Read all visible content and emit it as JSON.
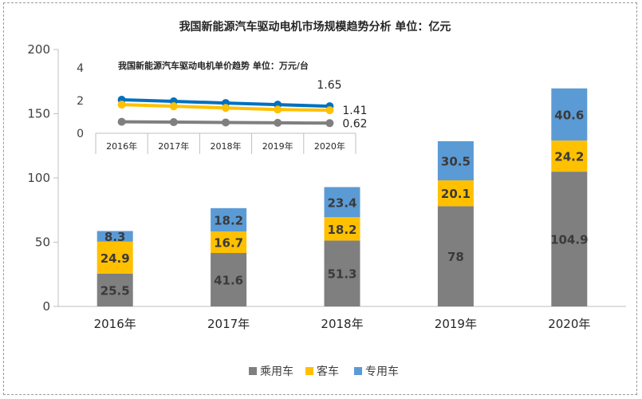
{
  "chart_data": [
    {
      "type": "bar",
      "stacked": true,
      "title": "我国新能源汽车驱动电机市场规模趋势分析 单位：亿元",
      "categories": [
        "2016年",
        "2017年",
        "2018年",
        "2019年",
        "2020年"
      ],
      "series": [
        {
          "name": "乘用车",
          "color": "#7f7f7f",
          "values": [
            25.5,
            41.6,
            51.3,
            78,
            104.9
          ]
        },
        {
          "name": "客车",
          "color": "#ffc000",
          "values": [
            24.9,
            16.7,
            18.2,
            20.1,
            24.2
          ]
        },
        {
          "name": "专用车",
          "color": "#5b9bd5",
          "values": [
            8.3,
            18.2,
            23.4,
            30.5,
            40.6
          ]
        }
      ],
      "ylim": [
        0,
        200
      ],
      "yticks": [
        0,
        50,
        100,
        150,
        200
      ],
      "grid": false,
      "legend": "bottom"
    },
    {
      "type": "line",
      "title": "我国新能源汽车驱动电机单价趋势 单位：万元/台",
      "categories": [
        "2016年",
        "2017年",
        "2018年",
        "2019年",
        "2020年"
      ],
      "series": [
        {
          "color": "#0070c0",
          "values": [
            2.05,
            1.95,
            1.85,
            1.75,
            1.65
          ],
          "end_label": "1.65"
        },
        {
          "color": "#ffc000",
          "values": [
            1.75,
            1.65,
            1.55,
            1.45,
            1.41
          ],
          "end_label": "1.41"
        },
        {
          "color": "#7f7f7f",
          "values": [
            0.7,
            0.68,
            0.66,
            0.64,
            0.62
          ],
          "end_label": "0.62"
        }
      ],
      "ylim": [
        0,
        4
      ],
      "yticks": [
        0,
        2,
        4
      ]
    }
  ]
}
